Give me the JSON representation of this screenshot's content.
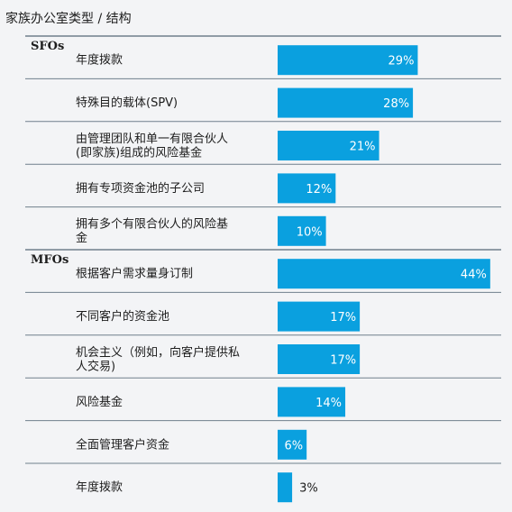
{
  "title": "家族办公室类型 / 结构",
  "chart_data": {
    "type": "bar",
    "orientation": "horizontal",
    "colors": {
      "bar": "#0aa0df",
      "rule": "#6f7f8c",
      "text": "#1d1d1d"
    },
    "groups": [
      {
        "name": "SFOs",
        "items": [
          {
            "label": [
              "年度拨款"
            ],
            "value": 29,
            "value_label": "29%"
          },
          {
            "label": [
              "特殊目的载体(SPV)"
            ],
            "value": 28,
            "value_label": "28%"
          },
          {
            "label": [
              "由管理团队和单一有限合伙人",
              "(即家族)组成的风险基金"
            ],
            "value": 21,
            "value_label": "21%"
          },
          {
            "label": [
              "拥有专项资金池的子公司"
            ],
            "value": 12,
            "value_label": "12%"
          },
          {
            "label": [
              "拥有多个有限合伙人的风险基",
              "金"
            ],
            "value": 10,
            "value_label": "10%"
          }
        ]
      },
      {
        "name": "MFOs",
        "items": [
          {
            "label": [
              "根据客户需求量身订制"
            ],
            "value": 44,
            "value_label": "44%"
          },
          {
            "label": [
              "不同客户的资金池"
            ],
            "value": 17,
            "value_label": "17%"
          },
          {
            "label": [
              "机会主义（例如，向客户提供私",
              "人交易)"
            ],
            "value": 17,
            "value_label": "17%"
          },
          {
            "label": [
              "风险基金"
            ],
            "value": 14,
            "value_label": "14%"
          },
          {
            "label": [
              "全面管理客户资金"
            ],
            "value": 6,
            "value_label": "6%"
          },
          {
            "label": [
              "年度拨款"
            ],
            "value": 3,
            "value_label": "3%"
          }
        ]
      }
    ]
  }
}
